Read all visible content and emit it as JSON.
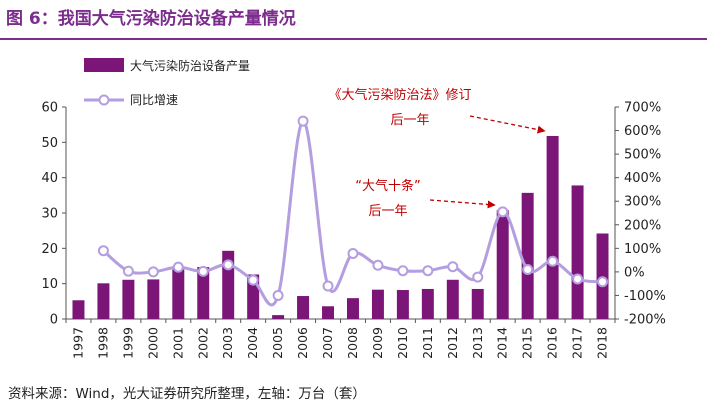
{
  "figure_title": "图 6：我国大气污染防治设备产量情况",
  "source_note": "资料来源：Wind，光大证券研究所整理，左轴：万台（套）",
  "colors": {
    "bar": "#7b1578",
    "line": "#b49ee0",
    "title": "#7b2c8c",
    "annotation": "#c00000"
  },
  "chart_data": {
    "type": "bar",
    "categories": [
      "1997",
      "1998",
      "1999",
      "2000",
      "2001",
      "2002",
      "2003",
      "2004",
      "2005",
      "2006",
      "2007",
      "2008",
      "2009",
      "2010",
      "2011",
      "2012",
      "2013",
      "2014",
      "2015",
      "2016",
      "2017",
      "2018"
    ],
    "series": [
      {
        "name": "大气污染防治设备产量",
        "type": "bar",
        "axis": "left",
        "values": [
          5.3,
          10.1,
          11.1,
          11.2,
          14.0,
          14.7,
          19.3,
          12.6,
          1.1,
          6.5,
          3.6,
          5.9,
          8.3,
          8.2,
          8.5,
          11.1,
          8.5,
          30.8,
          35.7,
          51.8,
          37.8,
          24.2
        ]
      },
      {
        "name": "同比增速",
        "type": "line",
        "axis": "right",
        "values": [
          null,
          90,
          3,
          0,
          20,
          2,
          30,
          -35,
          -100,
          640,
          -60,
          78,
          28,
          5,
          5,
          22,
          -22,
          255,
          10,
          45,
          -30,
          -42
        ]
      }
    ],
    "y_left": {
      "min": 0,
      "max": 60,
      "ticks": [
        0,
        10,
        20,
        30,
        40,
        50,
        60
      ]
    },
    "y_right": {
      "min": -200,
      "max": 700,
      "ticks": [
        -200,
        -100,
        0,
        100,
        200,
        300,
        400,
        500,
        600,
        700
      ],
      "tick_labels": [
        "-200%",
        "-100%",
        "0%",
        "100%",
        "200%",
        "300%",
        "400%",
        "500%",
        "600%",
        "700%"
      ]
    },
    "annotations": [
      {
        "lines": [
          "《大气污染防治法》修订",
          "后一年"
        ],
        "points_to": "2016"
      },
      {
        "lines": [
          "“大气十条”",
          "后一年"
        ],
        "points_to": "2014"
      }
    ],
    "legend_placement": "top-left",
    "grid": false
  }
}
